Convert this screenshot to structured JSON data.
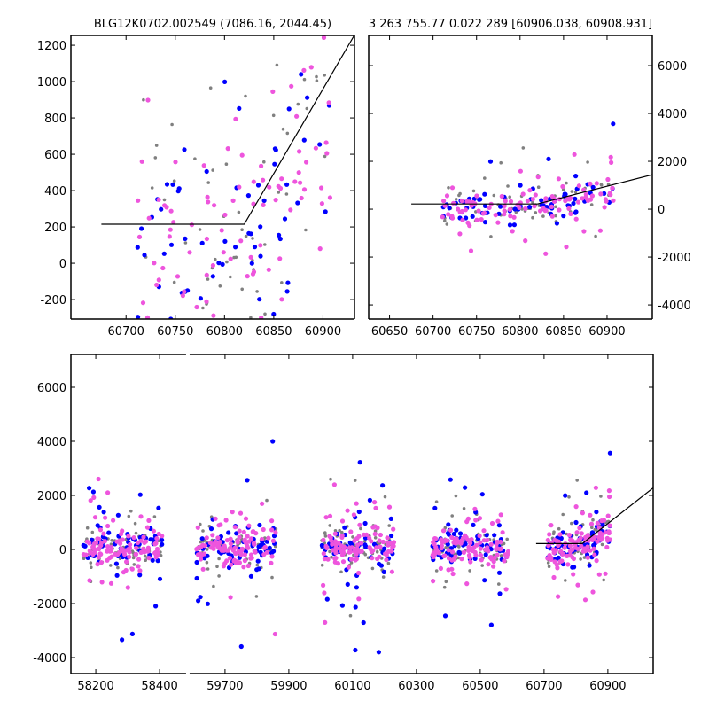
{
  "chart_data": [
    {
      "type": "scatter",
      "panel": "top-left",
      "title": "BLG12K0702.002549 (7086.16, 2044.45)",
      "xlim": [
        60644,
        60932
      ],
      "ylim": [
        -307,
        1254
      ],
      "xticks": [
        60700,
        60750,
        60800,
        60850,
        60900
      ],
      "yticks": [
        -200,
        0,
        200,
        400,
        600,
        800,
        1000,
        1200
      ],
      "ytick_side": "left",
      "seasons": [
        4
      ]
    },
    {
      "type": "scatter",
      "panel": "top-right",
      "title": "3 263 755.77 0.022 289 [60906.038, 60908.931]",
      "xlim": [
        60626,
        60952
      ],
      "ylim": [
        -4590,
        7260
      ],
      "xticks": [
        60650,
        60700,
        60750,
        60800,
        60850,
        60900
      ],
      "yticks": [
        -4000,
        -2000,
        0,
        2000,
        4000,
        6000
      ],
      "ytick_side": "right",
      "seasons": [
        4
      ]
    },
    {
      "type": "scatter",
      "panel": "bottom",
      "title": "",
      "broken_x_axis": [
        {
          "xlim": [
            58122,
            58483
          ],
          "xticks": [
            58200,
            58400
          ]
        },
        {
          "xlim": [
            59589,
            61042
          ],
          "xticks": [
            59700,
            59900,
            60100,
            60300,
            60500,
            60700,
            60900
          ]
        }
      ],
      "ylim": [
        -4590,
        7213
      ],
      "yticks": [
        -4000,
        -2000,
        0,
        2000,
        4000,
        6000
      ],
      "ytick_side": "left",
      "seasons": [
        0,
        1,
        2,
        3,
        4
      ]
    }
  ],
  "series": [
    {
      "name": "gray",
      "color": "#808080",
      "sigma": 700,
      "core": 350,
      "per_season": 70
    },
    {
      "name": "blue",
      "color": "#0000ff",
      "sigma": 900,
      "core": 330,
      "per_season": 70
    },
    {
      "name": "magenta",
      "color": "#ee55dd",
      "sigma": 600,
      "core": 300,
      "per_season": 110
    }
  ],
  "seasons": [
    {
      "start": 58160,
      "end": 58410
    },
    {
      "start": 59610,
      "end": 59860
    },
    {
      "start": 60000,
      "end": 60230
    },
    {
      "start": 60350,
      "end": 60590
    },
    {
      "start": 60710,
      "end": 60910
    }
  ],
  "model_line": {
    "color": "#000000",
    "x": [
      60675,
      60820,
      61042
    ],
    "y": [
      215,
      215,
      2280
    ]
  }
}
